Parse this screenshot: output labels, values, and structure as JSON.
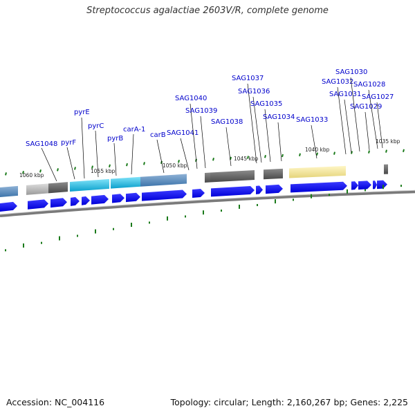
{
  "title": "Streptococcus agalactiae 2603V/R, complete genome",
  "footer": {
    "accession": "Accession: NC_004116",
    "topology": "Topology: circular; Length: 2,160,267 bp; Genes: 2,225"
  },
  "colors": {
    "label_text": "#0000cc",
    "cds_arrow": "#0000ff",
    "tick": "#1a7a1a",
    "backbone": "#7a7a7a",
    "feature_dark_gray": "#5a5a5a",
    "feature_light_gray": "#b0b0b0",
    "feature_cyan": "#20b0d8",
    "feature_steel_blue": "#4f86b8",
    "feature_yellow": "#efe19a"
  },
  "kbp_labels": [
    "1060 kbp",
    "1055 kbp",
    "1050 kbp",
    "1045 kbp",
    "1040 kbp",
    "1035 kbp"
  ],
  "gene_labels": [
    "SAG1048",
    "pyrF",
    "pyrE",
    "pyrC",
    "pyrB",
    "carA-1",
    "carB",
    "SAG1041",
    "SAG1040",
    "SAG1039",
    "SAG1038",
    "SAG1037",
    "SAG1036",
    "SAG1035",
    "SAG1034",
    "SAG1033",
    "SAG1032",
    "SAG1031",
    "SAG1030",
    "SAG1029",
    "SAG1028",
    "SAG1027"
  ]
}
